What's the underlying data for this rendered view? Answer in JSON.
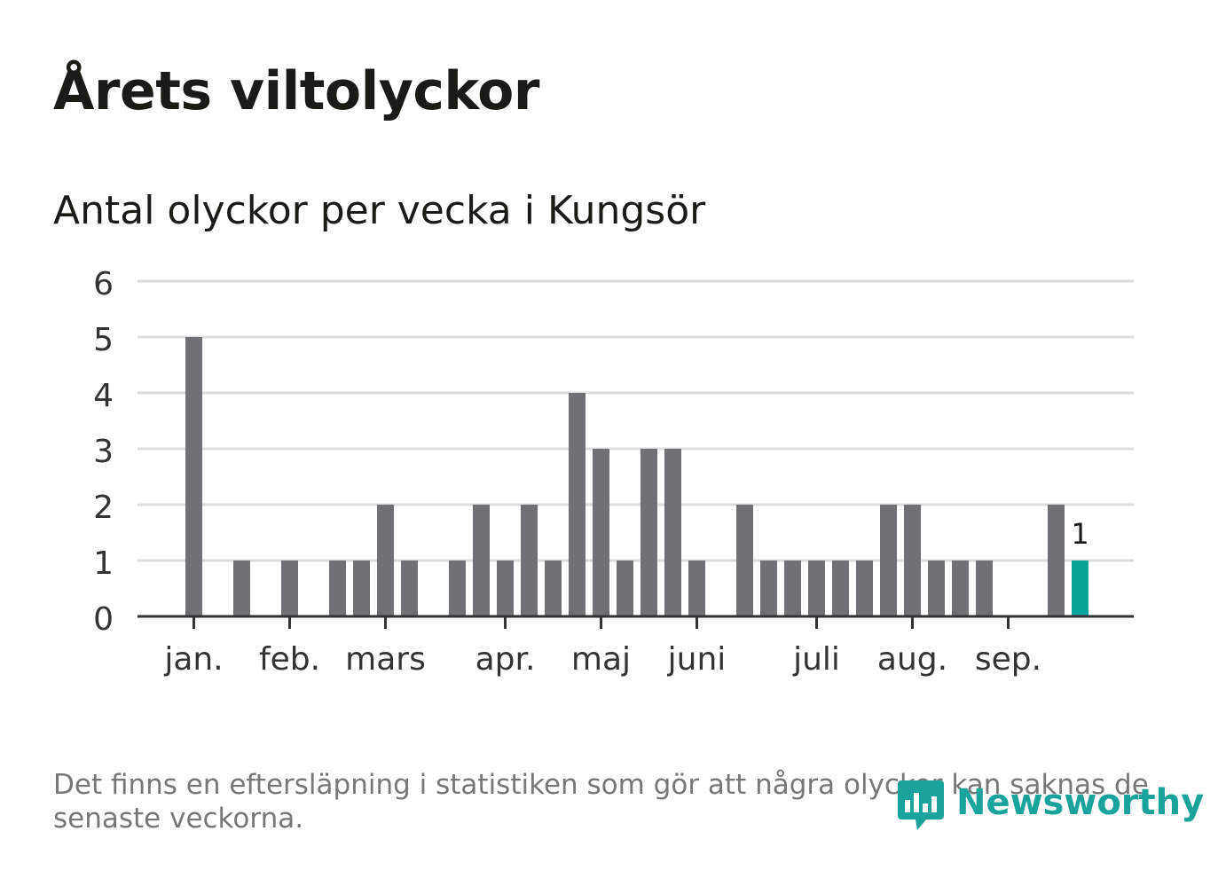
{
  "title": "Årets viltolyckor",
  "subtitle": "Antal olyckor per vecka i Kungsör",
  "footnote": "Det finns en eftersläpning i statistiken som gör att några olyckor kan saknas de senaste veckorna.",
  "brand": {
    "name": "Newsworthy",
    "color": "#1aa39a"
  },
  "colors": {
    "bar": "#717075",
    "highlight": "#0aa39a",
    "grid": "#dddddd",
    "axis": "#333333"
  },
  "chart_data": {
    "type": "bar",
    "title": "Antal olyckor per vecka i Kungsör",
    "xlabel": "",
    "ylabel": "",
    "ylim": [
      0,
      6
    ],
    "yticks": [
      0,
      1,
      2,
      3,
      4,
      5,
      6
    ],
    "grid": true,
    "weeks": [
      1,
      2,
      3,
      4,
      5,
      6,
      7,
      8,
      9,
      10,
      11,
      12,
      13,
      14,
      15,
      16,
      17,
      18,
      19,
      20,
      21,
      22,
      23,
      24,
      25,
      26,
      27,
      28,
      29,
      30,
      31,
      32,
      33,
      34,
      35,
      36,
      37,
      38
    ],
    "values": [
      5,
      0,
      1,
      0,
      1,
      0,
      1,
      1,
      2,
      1,
      0,
      1,
      2,
      1,
      2,
      1,
      4,
      3,
      1,
      3,
      3,
      1,
      0,
      2,
      1,
      1,
      1,
      1,
      1,
      2,
      2,
      1,
      1,
      1,
      0,
      0,
      2,
      1
    ],
    "highlight_last": true,
    "highlight_label": "1",
    "month_labels": [
      {
        "label": "jan.",
        "week": 1
      },
      {
        "label": "feb.",
        "week": 5
      },
      {
        "label": "mars",
        "week": 9
      },
      {
        "label": "apr.",
        "week": 14
      },
      {
        "label": "maj",
        "week": 18
      },
      {
        "label": "juni",
        "week": 22
      },
      {
        "label": "juli",
        "week": 27
      },
      {
        "label": "aug.",
        "week": 31
      },
      {
        "label": "sep.",
        "week": 35
      }
    ]
  }
}
